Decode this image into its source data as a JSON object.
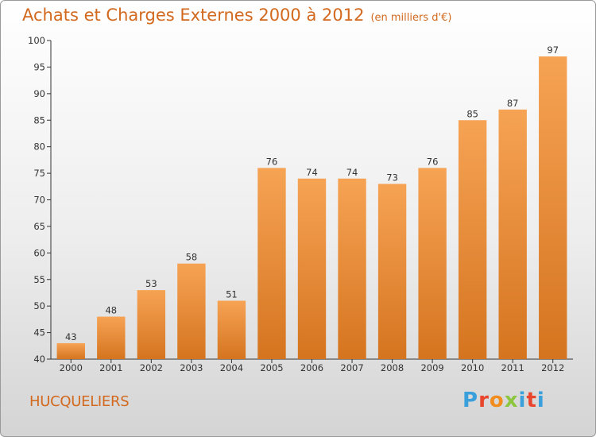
{
  "header": {
    "title": "Achats et Charges Externes 2000 à 2012",
    "unit": "(en milliers d'€)"
  },
  "footer": {
    "commune": "HUCQUELIERS",
    "logo": [
      "P",
      "r",
      "o",
      "x",
      "i",
      "t",
      "i"
    ]
  },
  "colors": {
    "accent": "#d2691e",
    "bar_top": "#f6a354",
    "bar_bottom": "#d5741f"
  },
  "chart_data": {
    "type": "bar",
    "categories": [
      "2000",
      "2001",
      "2002",
      "2003",
      "2004",
      "2005",
      "2006",
      "2007",
      "2008",
      "2009",
      "2010",
      "2011",
      "2012"
    ],
    "values": [
      43,
      48,
      53,
      58,
      51,
      76,
      74,
      74,
      73,
      76,
      85,
      87,
      97
    ],
    "ylim": [
      40,
      100
    ],
    "yticks": [
      40,
      45,
      50,
      55,
      60,
      65,
      70,
      75,
      80,
      85,
      90,
      95,
      100
    ],
    "grid": false
  }
}
